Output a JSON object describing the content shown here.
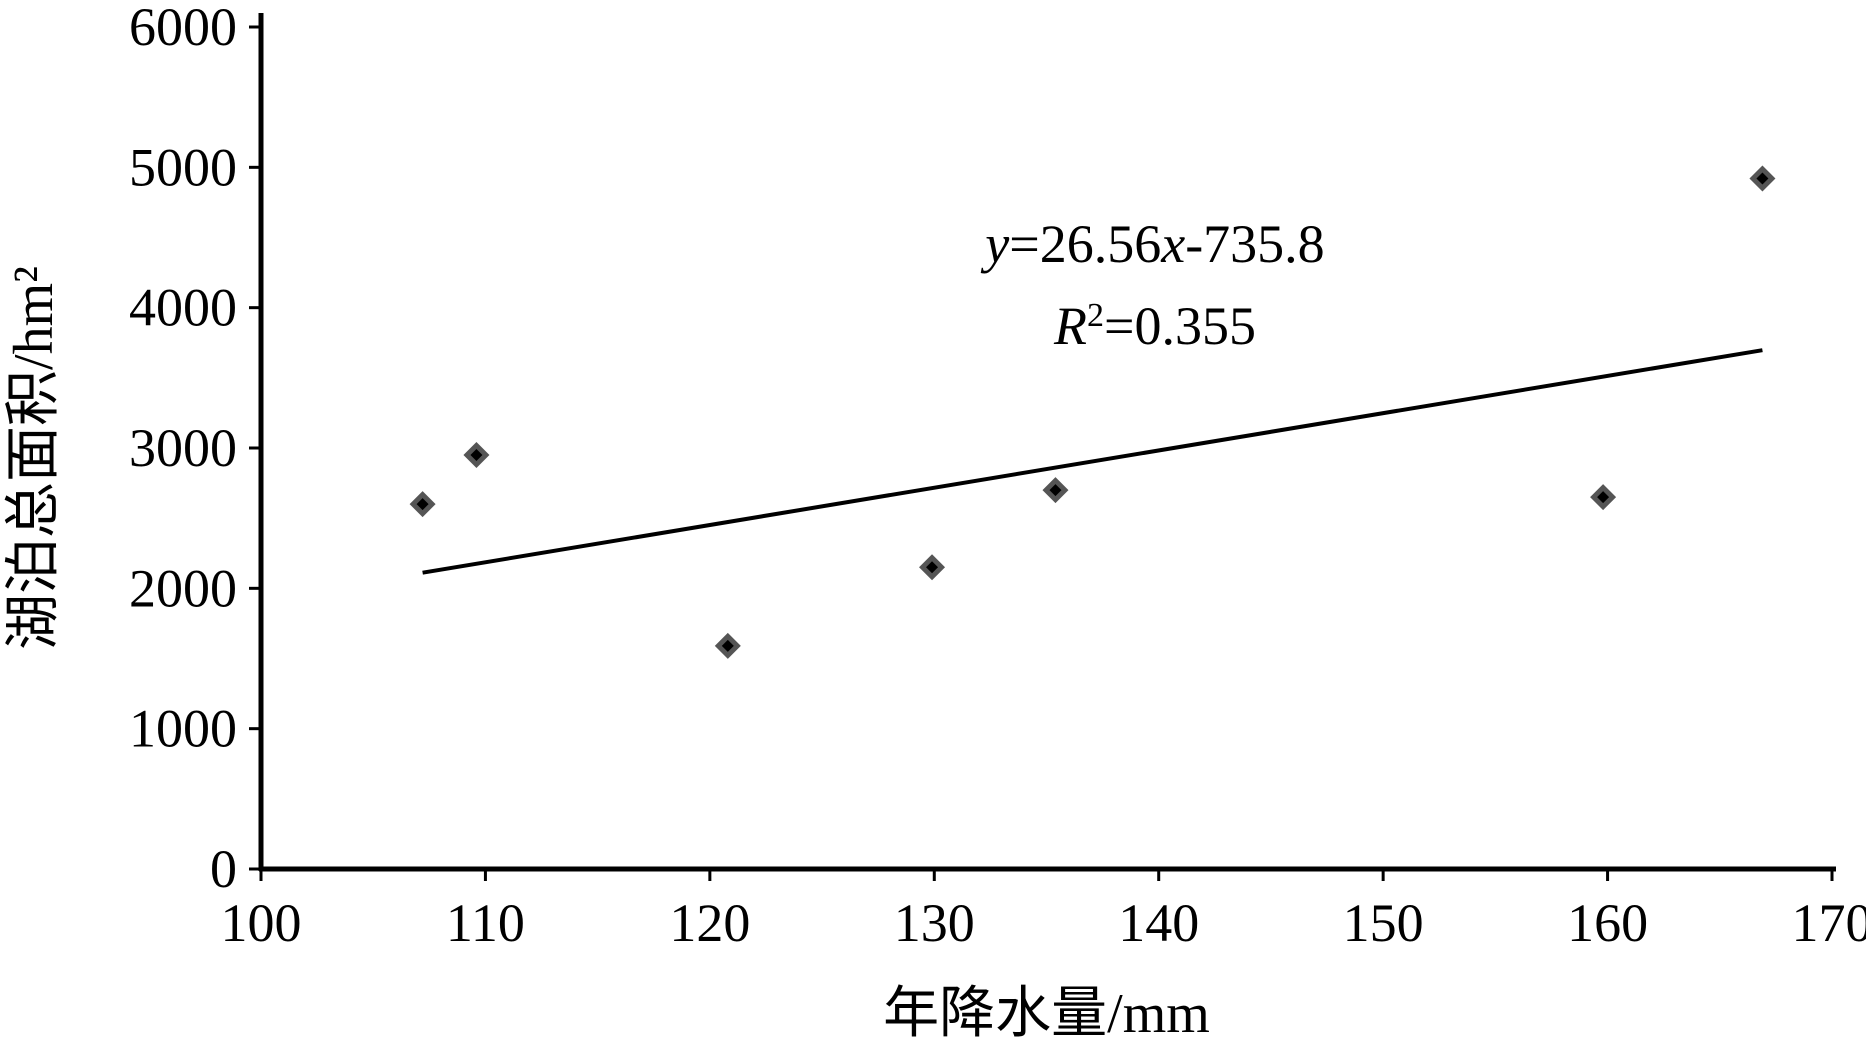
{
  "chart_data": {
    "type": "scatter",
    "xlabel": "年降水量/mm",
    "ylabel": "湖泊总面积/hm²",
    "xlim": [
      100,
      170
    ],
    "ylim": [
      0,
      6000
    ],
    "x_ticks": [
      100,
      110,
      120,
      130,
      140,
      150,
      160,
      170
    ],
    "y_ticks": [
      0,
      1000,
      2000,
      3000,
      4000,
      5000,
      6000
    ],
    "grid": false,
    "legend": "none",
    "points": [
      {
        "x": 107.2,
        "y": 2600
      },
      {
        "x": 109.6,
        "y": 2950
      },
      {
        "x": 120.8,
        "y": 1590
      },
      {
        "x": 129.9,
        "y": 2150
      },
      {
        "x": 135.4,
        "y": 2700
      },
      {
        "x": 159.8,
        "y": 2650
      },
      {
        "x": 166.9,
        "y": 4920
      }
    ],
    "trendline": {
      "slope": 26.56,
      "intercept": -735.8,
      "x_range": [
        107.2,
        166.9
      ]
    },
    "annotations": {
      "equation_y": "y",
      "equation_mid": "=26.56",
      "equation_x": "x",
      "equation_tail": "-735.8",
      "r2_symbol": "R",
      "r2_sup": "2",
      "r2_value": "=0.355"
    },
    "colors": {
      "axis": "#000000",
      "marker_outer": "#555555",
      "marker_inner": "#000000",
      "trendline": "#000000"
    }
  }
}
